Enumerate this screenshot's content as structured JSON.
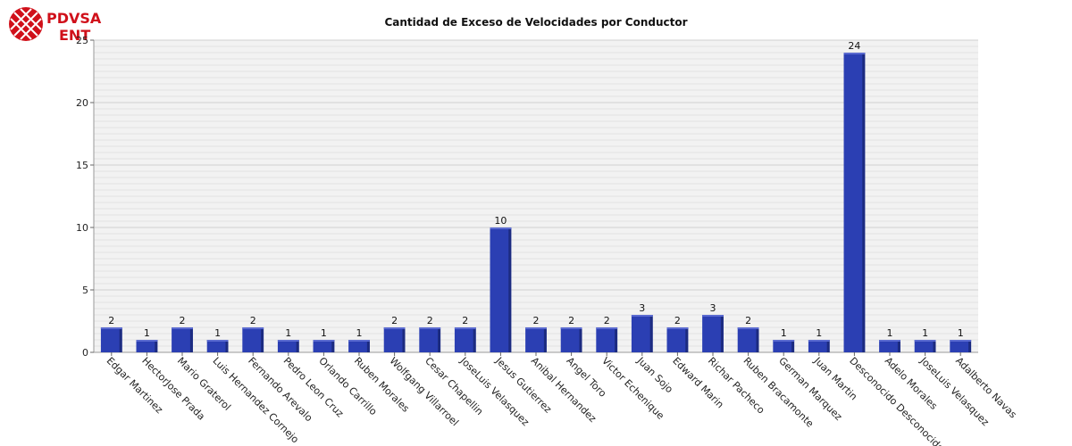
{
  "logo": {
    "line1": "PDVSA",
    "line2": "ENT"
  },
  "chart_data": {
    "type": "bar",
    "title": "Cantidad de Exceso de Velocidades por Conductor",
    "xlabel": "",
    "ylabel": "",
    "ylim": [
      0,
      25
    ],
    "yticks": [
      0,
      5,
      10,
      15,
      20,
      25
    ],
    "grid": true,
    "legend": "none",
    "bar_color": "#2b3fb3",
    "categories": [
      "Edgar Martinez",
      "HectorJose Prada",
      "Mario Graterol",
      "Luis Hernandez Cornejo",
      "Fernando Arevalo",
      "Pedro Leon Cruz",
      "Orlando Carrillo",
      "Ruben Morales",
      "Wolfgang Villarroel",
      "Cesar Chapellin",
      "JoseLuis Velasquez",
      "Jesus Gutierrez",
      "Anibal Hernandez",
      "Angel Toro",
      "Victor Echenique",
      "Juan Sojo",
      "Edward Marin",
      "Richar Pacheco",
      "Ruben Bracamonte",
      "German Marquez",
      "Juan Martin",
      "Desconocido Desconocido",
      "Adelo Morales",
      "JoseLuis Velasquez",
      "Adalberto Navas"
    ],
    "values": [
      2,
      1,
      2,
      1,
      2,
      1,
      1,
      1,
      2,
      2,
      2,
      10,
      2,
      2,
      2,
      3,
      2,
      3,
      2,
      1,
      1,
      24,
      1,
      1,
      1
    ]
  }
}
